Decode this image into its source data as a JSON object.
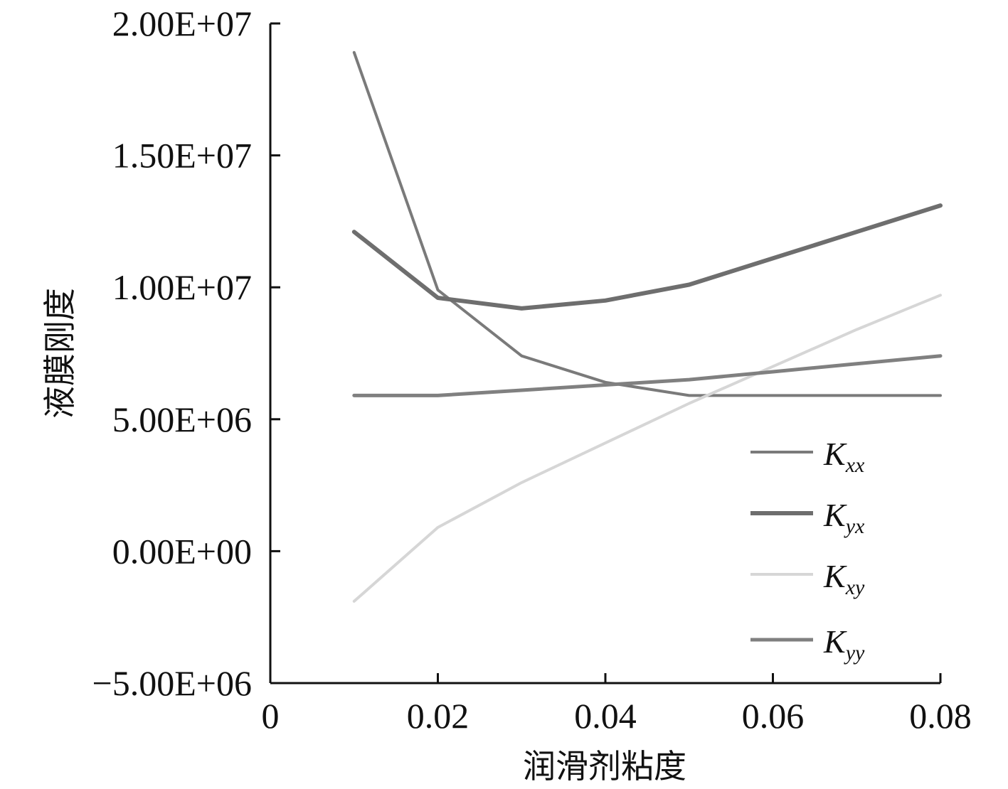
{
  "chart_data": {
    "type": "line",
    "xlabel": "润滑剂粘度",
    "ylabel": "液膜刚度",
    "xlim": [
      0,
      0.08
    ],
    "ylim": [
      -5000000,
      20000000
    ],
    "x_ticks": [
      0,
      0.02,
      0.04,
      0.06,
      0.08
    ],
    "x_tick_labels": [
      "0",
      "0.02",
      "0.04",
      "0.06",
      "0.08"
    ],
    "y_ticks": [
      -5000000,
      0,
      5000000,
      10000000,
      15000000,
      20000000
    ],
    "y_tick_labels": [
      "−5.00E+06",
      "0.00E+00",
      "5.00E+06",
      "1.00E+07",
      "1.50E+07",
      "2.00E+07"
    ],
    "grid": false,
    "legend_position": "right",
    "x": [
      0.01,
      0.02,
      0.03,
      0.04,
      0.05,
      0.06,
      0.07,
      0.08
    ],
    "series": [
      {
        "name": "K",
        "subscript": "xx",
        "color": "#7a7a7a",
        "values": [
          18900000,
          9900000,
          7400000,
          6400000,
          5900000,
          5900000,
          5900000,
          5900000
        ]
      },
      {
        "name": "K",
        "subscript": "yx",
        "color": "#6e6e6e",
        "values": [
          12100000,
          9600000,
          9200000,
          9500000,
          10100000,
          11100000,
          12100000,
          13100000
        ]
      },
      {
        "name": "K",
        "subscript": "xy",
        "color": "#d6d6d6",
        "values": [
          -1900000,
          900000,
          2600000,
          4100000,
          5600000,
          7000000,
          8400000,
          9700000
        ]
      },
      {
        "name": "K",
        "subscript": "yy",
        "color": "#808080",
        "values": [
          5900000,
          5900000,
          6100000,
          6300000,
          6500000,
          6800000,
          7100000,
          7400000
        ]
      }
    ]
  }
}
